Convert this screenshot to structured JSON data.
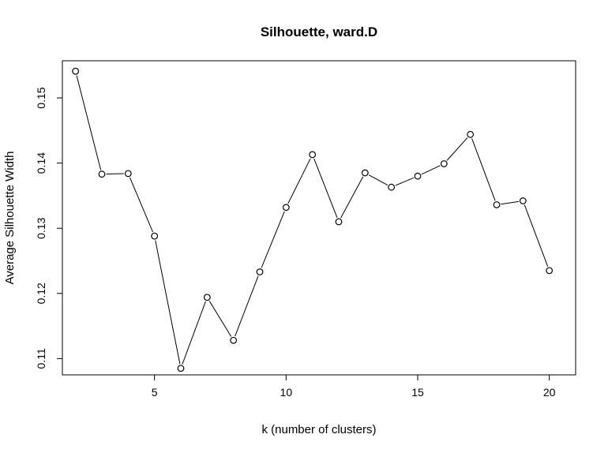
{
  "chart_data": {
    "type": "line",
    "title": "Silhouette, ward.D",
    "xlabel": "k (number of clusters)",
    "ylabel": "Average Silhouette Width",
    "x": [
      2,
      3,
      4,
      5,
      6,
      7,
      8,
      9,
      10,
      11,
      12,
      13,
      14,
      15,
      16,
      17,
      18,
      19,
      20
    ],
    "series": [
      {
        "values": [
          0.1541,
          0.1383,
          0.1384,
          0.1288,
          0.1085,
          0.1194,
          0.1128,
          0.1233,
          0.1332,
          0.1413,
          0.131,
          0.1385,
          0.1363,
          0.138,
          0.1399,
          0.1444,
          0.1336,
          0.1342,
          0.1235
        ]
      }
    ],
    "xticks": [
      5,
      10,
      15,
      20
    ],
    "yticks": [
      0.11,
      0.12,
      0.13,
      0.14,
      0.15
    ],
    "xlim": [
      1.5,
      21.0
    ],
    "ylim": [
      0.1075,
      0.1557
    ],
    "grid": false,
    "legend": "none",
    "marker": "open-circle"
  }
}
